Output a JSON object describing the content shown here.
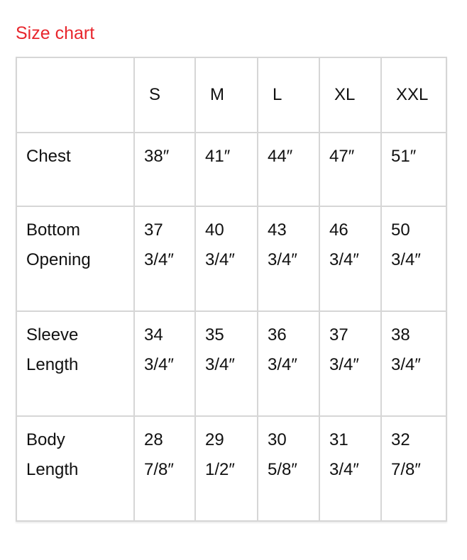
{
  "title": "Size chart",
  "table": {
    "headers": [
      "",
      "S",
      "M",
      "L",
      "XL",
      "XXL"
    ],
    "rows": [
      {
        "label": [
          "Chest"
        ],
        "values": [
          [
            "38″"
          ],
          [
            "41″"
          ],
          [
            "44″"
          ],
          [
            "47″"
          ],
          [
            "51″"
          ]
        ]
      },
      {
        "label": [
          "Bottom",
          "Opening"
        ],
        "values": [
          [
            "37",
            "3/4″"
          ],
          [
            "40",
            "3/4″"
          ],
          [
            "43",
            "3/4″"
          ],
          [
            "46",
            "3/4″"
          ],
          [
            "50",
            "3/4″"
          ]
        ]
      },
      {
        "label": [
          "Sleeve",
          "Length"
        ],
        "values": [
          [
            "34",
            "3/4″"
          ],
          [
            "35",
            "3/4″"
          ],
          [
            "36",
            "3/4″"
          ],
          [
            "37",
            "3/4″"
          ],
          [
            "38",
            "3/4″"
          ]
        ]
      },
      {
        "label": [
          "Body",
          "Length"
        ],
        "values": [
          [
            "28",
            "7/8″"
          ],
          [
            "29",
            "1/2″"
          ],
          [
            "30",
            "5/8″"
          ],
          [
            "31",
            "3/4″"
          ],
          [
            "32",
            "7/8″"
          ]
        ]
      }
    ]
  }
}
